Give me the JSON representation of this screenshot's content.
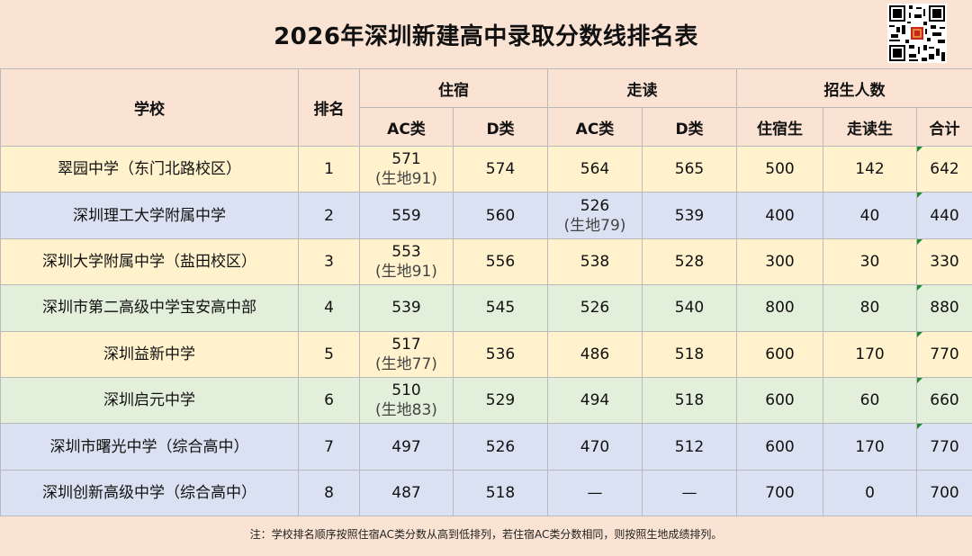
{
  "title": "2026年深圳新建高中录取分数线排名表",
  "headers": {
    "school": "学校",
    "rank": "排名",
    "boarding": "住宿",
    "day": "走读",
    "enroll": "招生人数",
    "ac": "AC类",
    "d": "D类",
    "boarding_students": "住宿生",
    "day_students": "走读生",
    "total": "合计"
  },
  "rows": [
    {
      "school": "翠园中学（东门北路校区）",
      "rank": "1",
      "b_ac": "571",
      "b_ac_sub": "(生地91)",
      "b_d": "574",
      "d_ac": "564",
      "d_ac_sub": "",
      "d_d": "565",
      "n_b": "500",
      "n_d": "142",
      "n_t": "642"
    },
    {
      "school": "深圳理工大学附属中学",
      "rank": "2",
      "b_ac": "559",
      "b_ac_sub": "",
      "b_d": "560",
      "d_ac": "526",
      "d_ac_sub": "(生地79)",
      "d_d": "539",
      "n_b": "400",
      "n_d": "40",
      "n_t": "440"
    },
    {
      "school": "深圳大学附属中学（盐田校区）",
      "rank": "3",
      "b_ac": "553",
      "b_ac_sub": "(生地91)",
      "b_d": "556",
      "d_ac": "538",
      "d_ac_sub": "",
      "d_d": "528",
      "n_b": "300",
      "n_d": "30",
      "n_t": "330"
    },
    {
      "school": "深圳市第二高级中学宝安高中部",
      "rank": "4",
      "b_ac": "539",
      "b_ac_sub": "",
      "b_d": "545",
      "d_ac": "526",
      "d_ac_sub": "",
      "d_d": "540",
      "n_b": "800",
      "n_d": "80",
      "n_t": "880"
    },
    {
      "school": "深圳益新中学",
      "rank": "5",
      "b_ac": "517",
      "b_ac_sub": "(生地77)",
      "b_d": "536",
      "d_ac": "486",
      "d_ac_sub": "",
      "d_d": "518",
      "n_b": "600",
      "n_d": "170",
      "n_t": "770"
    },
    {
      "school": "深圳启元中学",
      "rank": "6",
      "b_ac": "510",
      "b_ac_sub": "(生地83)",
      "b_d": "529",
      "d_ac": "494",
      "d_ac_sub": "",
      "d_d": "518",
      "n_b": "600",
      "n_d": "60",
      "n_t": "660"
    },
    {
      "school": "深圳市曙光中学（综合高中）",
      "rank": "7",
      "b_ac": "497",
      "b_ac_sub": "",
      "b_d": "526",
      "d_ac": "470",
      "d_ac_sub": "",
      "d_d": "512",
      "n_b": "600",
      "n_d": "170",
      "n_t": "770"
    },
    {
      "school": "深圳创新高级中学（综合高中）",
      "rank": "8",
      "b_ac": "487",
      "b_ac_sub": "",
      "b_d": "518",
      "d_ac": "—",
      "d_ac_sub": "",
      "d_d": "—",
      "n_b": "700",
      "n_d": "0",
      "n_t": "700"
    }
  ],
  "note": "注：学校排名顺序按照住宿AC类分数从高到低排列，若住宿AC类分数相同，则按照生地成绩排列。",
  "qr_icon": "qr-code-icon"
}
